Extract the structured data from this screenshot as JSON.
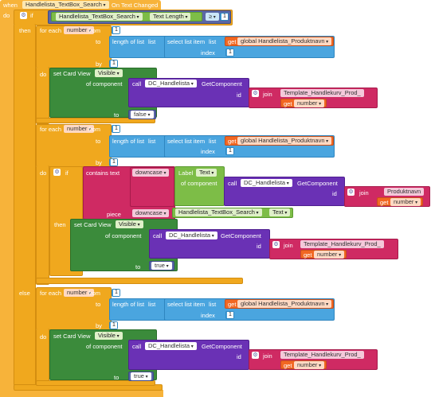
{
  "event": {
    "when": "when",
    "component": "Handlelista_TextBox_Search",
    "event_name": "On Text Changed",
    "do": "do"
  },
  "condition": {
    "if": "if",
    "textbox": "Handlelista_TextBox_Search",
    "property": "Text Length",
    "operator": "≥",
    "value": "1"
  },
  "then_label": "then",
  "else_label": "else",
  "loop": {
    "for_each": "for each",
    "var": "number",
    "from": "from",
    "to": "to",
    "by": "by",
    "do": "do",
    "one": "1"
  },
  "list": {
    "length_of_list": "length of list",
    "list": "list",
    "select_list_item": "select list item",
    "index": "index",
    "get": "get",
    "global_var": "global Handlelista_Produktnavn"
  },
  "card": {
    "set_card": "set Card View",
    "prop": "Visible",
    "of_component": "of component",
    "call": "call",
    "dc": "DC_Handlelista",
    "get_component": "GetComponent",
    "id": "id",
    "to": "to",
    "join": "join",
    "template": "Template_Handlekurv_Prod_",
    "get": "get",
    "number": "number",
    "false": "false",
    "true": "true"
  },
  "inner_if": {
    "if": "if",
    "then": "then",
    "contains_text": "contains text",
    "downcase": "downcase",
    "label": "Label",
    "text": "Text",
    "of_component": "of component",
    "call": "call",
    "dc": "DC_Handlelista",
    "get_component": "GetComponent",
    "id": "id",
    "join": "join",
    "produktnavn": "Produktnavn",
    "get": "get",
    "number": "number",
    "piece": "piece",
    "textbox": "Handlelista_TextBox_Search",
    "textbox_prop": "Text"
  }
}
